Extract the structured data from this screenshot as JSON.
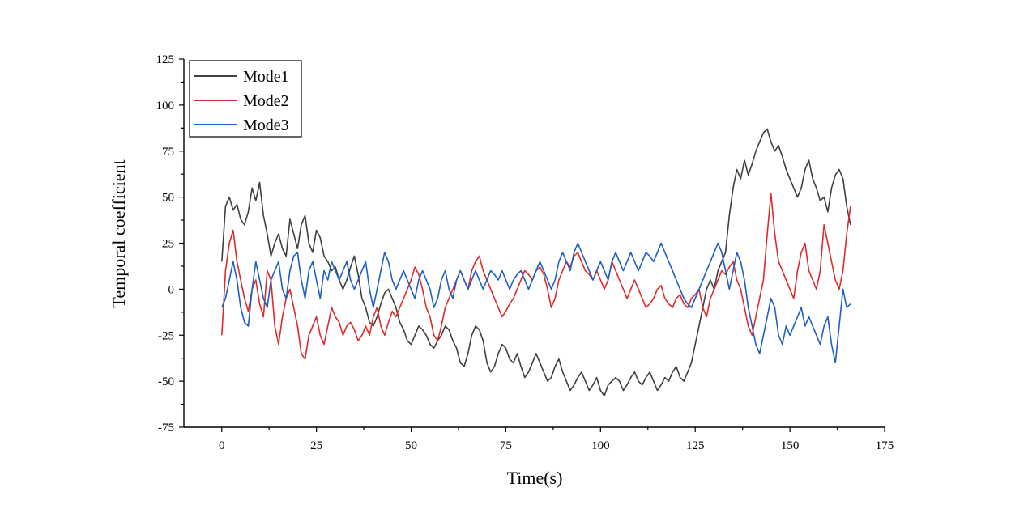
{
  "chart_data": {
    "type": "line",
    "title": "",
    "xlabel": "Time(s)",
    "ylabel": "Temporal coefficient",
    "xlim": [
      -10,
      175
    ],
    "ylim": [
      -75,
      125
    ],
    "xticks": [
      0,
      25,
      50,
      75,
      100,
      125,
      150,
      175
    ],
    "yticks": [
      -75,
      -50,
      -25,
      0,
      25,
      50,
      75,
      100,
      125
    ],
    "grid": false,
    "legend_position": "top-left",
    "series": [
      {
        "name": "Mode1",
        "color": "#3f3f3f",
        "x": [
          0,
          1,
          2,
          3,
          4,
          5,
          6,
          7,
          8,
          9,
          10,
          11,
          12,
          13,
          14,
          15,
          16,
          17,
          18,
          19,
          20,
          21,
          22,
          23,
          24,
          25,
          26,
          27,
          28,
          29,
          30,
          31,
          32,
          33,
          34,
          35,
          36,
          37,
          38,
          39,
          40,
          41,
          42,
          43,
          44,
          45,
          46,
          47,
          48,
          49,
          50,
          51,
          52,
          53,
          54,
          55,
          56,
          57,
          58,
          59,
          60,
          61,
          62,
          63,
          64,
          65,
          66,
          67,
          68,
          69,
          70,
          71,
          72,
          73,
          74,
          75,
          76,
          77,
          78,
          79,
          80,
          81,
          82,
          83,
          84,
          85,
          86,
          87,
          88,
          89,
          90,
          91,
          92,
          93,
          94,
          95,
          96,
          97,
          98,
          99,
          100,
          101,
          102,
          103,
          104,
          105,
          106,
          107,
          108,
          109,
          110,
          111,
          112,
          113,
          114,
          115,
          116,
          117,
          118,
          119,
          120,
          121,
          122,
          123,
          124,
          125,
          126,
          127,
          128,
          129,
          130,
          131,
          132,
          133,
          134,
          135,
          136,
          137,
          138,
          139,
          140,
          141,
          142,
          143,
          144,
          145,
          146,
          147,
          148,
          149,
          150,
          151,
          152,
          153,
          154,
          155,
          156,
          157,
          158,
          159,
          160,
          161,
          162,
          163,
          164,
          165,
          166
        ],
        "values": [
          15,
          45,
          50,
          43,
          46,
          38,
          35,
          42,
          55,
          48,
          58,
          40,
          30,
          18,
          25,
          30,
          22,
          18,
          38,
          30,
          22,
          35,
          40,
          25,
          20,
          32,
          28,
          18,
          15,
          10,
          12,
          5,
          0,
          5,
          12,
          18,
          8,
          -5,
          -10,
          -18,
          -20,
          -15,
          -8,
          -2,
          0,
          -5,
          -10,
          -18,
          -22,
          -28,
          -30,
          -25,
          -20,
          -22,
          -25,
          -30,
          -32,
          -28,
          -25,
          -20,
          -22,
          -28,
          -32,
          -40,
          -42,
          -35,
          -25,
          -20,
          -22,
          -28,
          -40,
          -45,
          -42,
          -35,
          -30,
          -32,
          -38,
          -40,
          -35,
          -42,
          -48,
          -45,
          -40,
          -35,
          -40,
          -45,
          -50,
          -48,
          -42,
          -38,
          -45,
          -50,
          -55,
          -52,
          -48,
          -45,
          -50,
          -55,
          -52,
          -48,
          -55,
          -58,
          -52,
          -50,
          -48,
          -50,
          -55,
          -52,
          -48,
          -45,
          -50,
          -52,
          -48,
          -45,
          -50,
          -55,
          -52,
          -48,
          -50,
          -45,
          -42,
          -48,
          -50,
          -45,
          -40,
          -30,
          -20,
          -10,
          0,
          5,
          0,
          10,
          15,
          20,
          40,
          55,
          65,
          60,
          70,
          62,
          68,
          75,
          80,
          85,
          87,
          80,
          75,
          78,
          72,
          65,
          60,
          55,
          50,
          55,
          65,
          70,
          60,
          55,
          48,
          50,
          42,
          55,
          62,
          65,
          60,
          45,
          35
        ]
      },
      {
        "name": "Mode2",
        "color": "#e02a2a",
        "x": [
          0,
          1,
          2,
          3,
          4,
          5,
          6,
          7,
          8,
          9,
          10,
          11,
          12,
          13,
          14,
          15,
          16,
          17,
          18,
          19,
          20,
          21,
          22,
          23,
          24,
          25,
          26,
          27,
          28,
          29,
          30,
          31,
          32,
          33,
          34,
          35,
          36,
          37,
          38,
          39,
          40,
          41,
          42,
          43,
          44,
          45,
          46,
          47,
          48,
          49,
          50,
          51,
          52,
          53,
          54,
          55,
          56,
          57,
          58,
          59,
          60,
          61,
          62,
          63,
          64,
          65,
          66,
          67,
          68,
          69,
          70,
          71,
          72,
          73,
          74,
          75,
          76,
          77,
          78,
          79,
          80,
          81,
          82,
          83,
          84,
          85,
          86,
          87,
          88,
          89,
          90,
          91,
          92,
          93,
          94,
          95,
          96,
          97,
          98,
          99,
          100,
          101,
          102,
          103,
          104,
          105,
          106,
          107,
          108,
          109,
          110,
          111,
          112,
          113,
          114,
          115,
          116,
          117,
          118,
          119,
          120,
          121,
          122,
          123,
          124,
          125,
          126,
          127,
          128,
          129,
          130,
          131,
          132,
          133,
          134,
          135,
          136,
          137,
          138,
          139,
          140,
          141,
          142,
          143,
          144,
          145,
          146,
          147,
          148,
          149,
          150,
          151,
          152,
          153,
          154,
          155,
          156,
          157,
          158,
          159,
          160,
          161,
          162,
          163,
          164,
          165,
          166
        ],
        "values": [
          -25,
          10,
          25,
          32,
          15,
          5,
          -5,
          -12,
          0,
          5,
          -8,
          -15,
          10,
          5,
          -20,
          -30,
          -15,
          -5,
          0,
          -10,
          -20,
          -35,
          -38,
          -25,
          -20,
          -15,
          -25,
          -30,
          -20,
          -10,
          -15,
          -18,
          -25,
          -20,
          -18,
          -22,
          -28,
          -25,
          -20,
          -25,
          -15,
          -10,
          -20,
          -25,
          -18,
          -12,
          -15,
          -10,
          -5,
          0,
          5,
          12,
          8,
          0,
          -10,
          -15,
          -25,
          -28,
          -20,
          -10,
          -5,
          0,
          5,
          10,
          5,
          0,
          10,
          15,
          18,
          10,
          5,
          0,
          -5,
          -10,
          -15,
          -12,
          -8,
          -5,
          0,
          5,
          10,
          8,
          5,
          10,
          12,
          8,
          0,
          -10,
          -5,
          5,
          10,
          15,
          12,
          18,
          20,
          15,
          10,
          8,
          5,
          10,
          5,
          0,
          5,
          15,
          10,
          5,
          0,
          -5,
          0,
          5,
          0,
          -5,
          -10,
          -8,
          -5,
          0,
          2,
          -5,
          -8,
          -10,
          -5,
          -3,
          -8,
          -10,
          -5,
          -3,
          0,
          -10,
          -15,
          -5,
          0,
          5,
          10,
          8,
          12,
          15,
          5,
          0,
          -10,
          -20,
          -25,
          -15,
          -5,
          5,
          30,
          52,
          30,
          15,
          10,
          5,
          0,
          -5,
          10,
          20,
          25,
          10,
          5,
          0,
          10,
          35,
          25,
          15,
          5,
          0,
          10,
          30,
          45
        ]
      },
      {
        "name": "Mode3",
        "color": "#1d5fc4",
        "x": [
          0,
          1,
          2,
          3,
          4,
          5,
          6,
          7,
          8,
          9,
          10,
          11,
          12,
          13,
          14,
          15,
          16,
          17,
          18,
          19,
          20,
          21,
          22,
          23,
          24,
          25,
          26,
          27,
          28,
          29,
          30,
          31,
          32,
          33,
          34,
          35,
          36,
          37,
          38,
          39,
          40,
          41,
          42,
          43,
          44,
          45,
          46,
          47,
          48,
          49,
          50,
          51,
          52,
          53,
          54,
          55,
          56,
          57,
          58,
          59,
          60,
          61,
          62,
          63,
          64,
          65,
          66,
          67,
          68,
          69,
          70,
          71,
          72,
          73,
          74,
          75,
          76,
          77,
          78,
          79,
          80,
          81,
          82,
          83,
          84,
          85,
          86,
          87,
          88,
          89,
          90,
          91,
          92,
          93,
          94,
          95,
          96,
          97,
          98,
          99,
          100,
          101,
          102,
          103,
          104,
          105,
          106,
          107,
          108,
          109,
          110,
          111,
          112,
          113,
          114,
          115,
          116,
          117,
          118,
          119,
          120,
          121,
          122,
          123,
          124,
          125,
          126,
          127,
          128,
          129,
          130,
          131,
          132,
          133,
          134,
          135,
          136,
          137,
          138,
          139,
          140,
          141,
          142,
          143,
          144,
          145,
          146,
          147,
          148,
          149,
          150,
          151,
          152,
          153,
          154,
          155,
          156,
          157,
          158,
          159,
          160,
          161,
          162,
          163,
          164,
          165,
          166
        ],
        "values": [
          -10,
          -5,
          5,
          15,
          5,
          -10,
          -18,
          -20,
          0,
          15,
          5,
          -5,
          -10,
          5,
          10,
          15,
          0,
          -5,
          10,
          18,
          20,
          5,
          -5,
          10,
          15,
          5,
          -5,
          10,
          5,
          15,
          10,
          5,
          10,
          15,
          5,
          0,
          5,
          10,
          15,
          0,
          -10,
          0,
          10,
          20,
          15,
          5,
          0,
          5,
          10,
          5,
          0,
          -5,
          5,
          10,
          5,
          0,
          -10,
          -5,
          5,
          10,
          0,
          -5,
          5,
          10,
          5,
          0,
          5,
          10,
          5,
          0,
          5,
          10,
          8,
          5,
          10,
          5,
          0,
          5,
          8,
          10,
          5,
          0,
          5,
          10,
          15,
          10,
          5,
          0,
          5,
          15,
          20,
          15,
          10,
          20,
          25,
          20,
          15,
          10,
          5,
          10,
          15,
          10,
          5,
          15,
          20,
          15,
          10,
          15,
          20,
          15,
          10,
          15,
          20,
          18,
          15,
          20,
          25,
          20,
          15,
          10,
          5,
          0,
          -5,
          -8,
          -10,
          -5,
          0,
          5,
          10,
          15,
          20,
          25,
          20,
          10,
          0,
          10,
          20,
          15,
          5,
          -10,
          -20,
          -30,
          -35,
          -25,
          -15,
          -5,
          -10,
          -25,
          -30,
          -20,
          -25,
          -20,
          -15,
          -10,
          -20,
          -15,
          -20,
          -25,
          -30,
          -20,
          -15,
          -30,
          -40,
          -20,
          0,
          -10,
          -8
        ]
      }
    ]
  }
}
